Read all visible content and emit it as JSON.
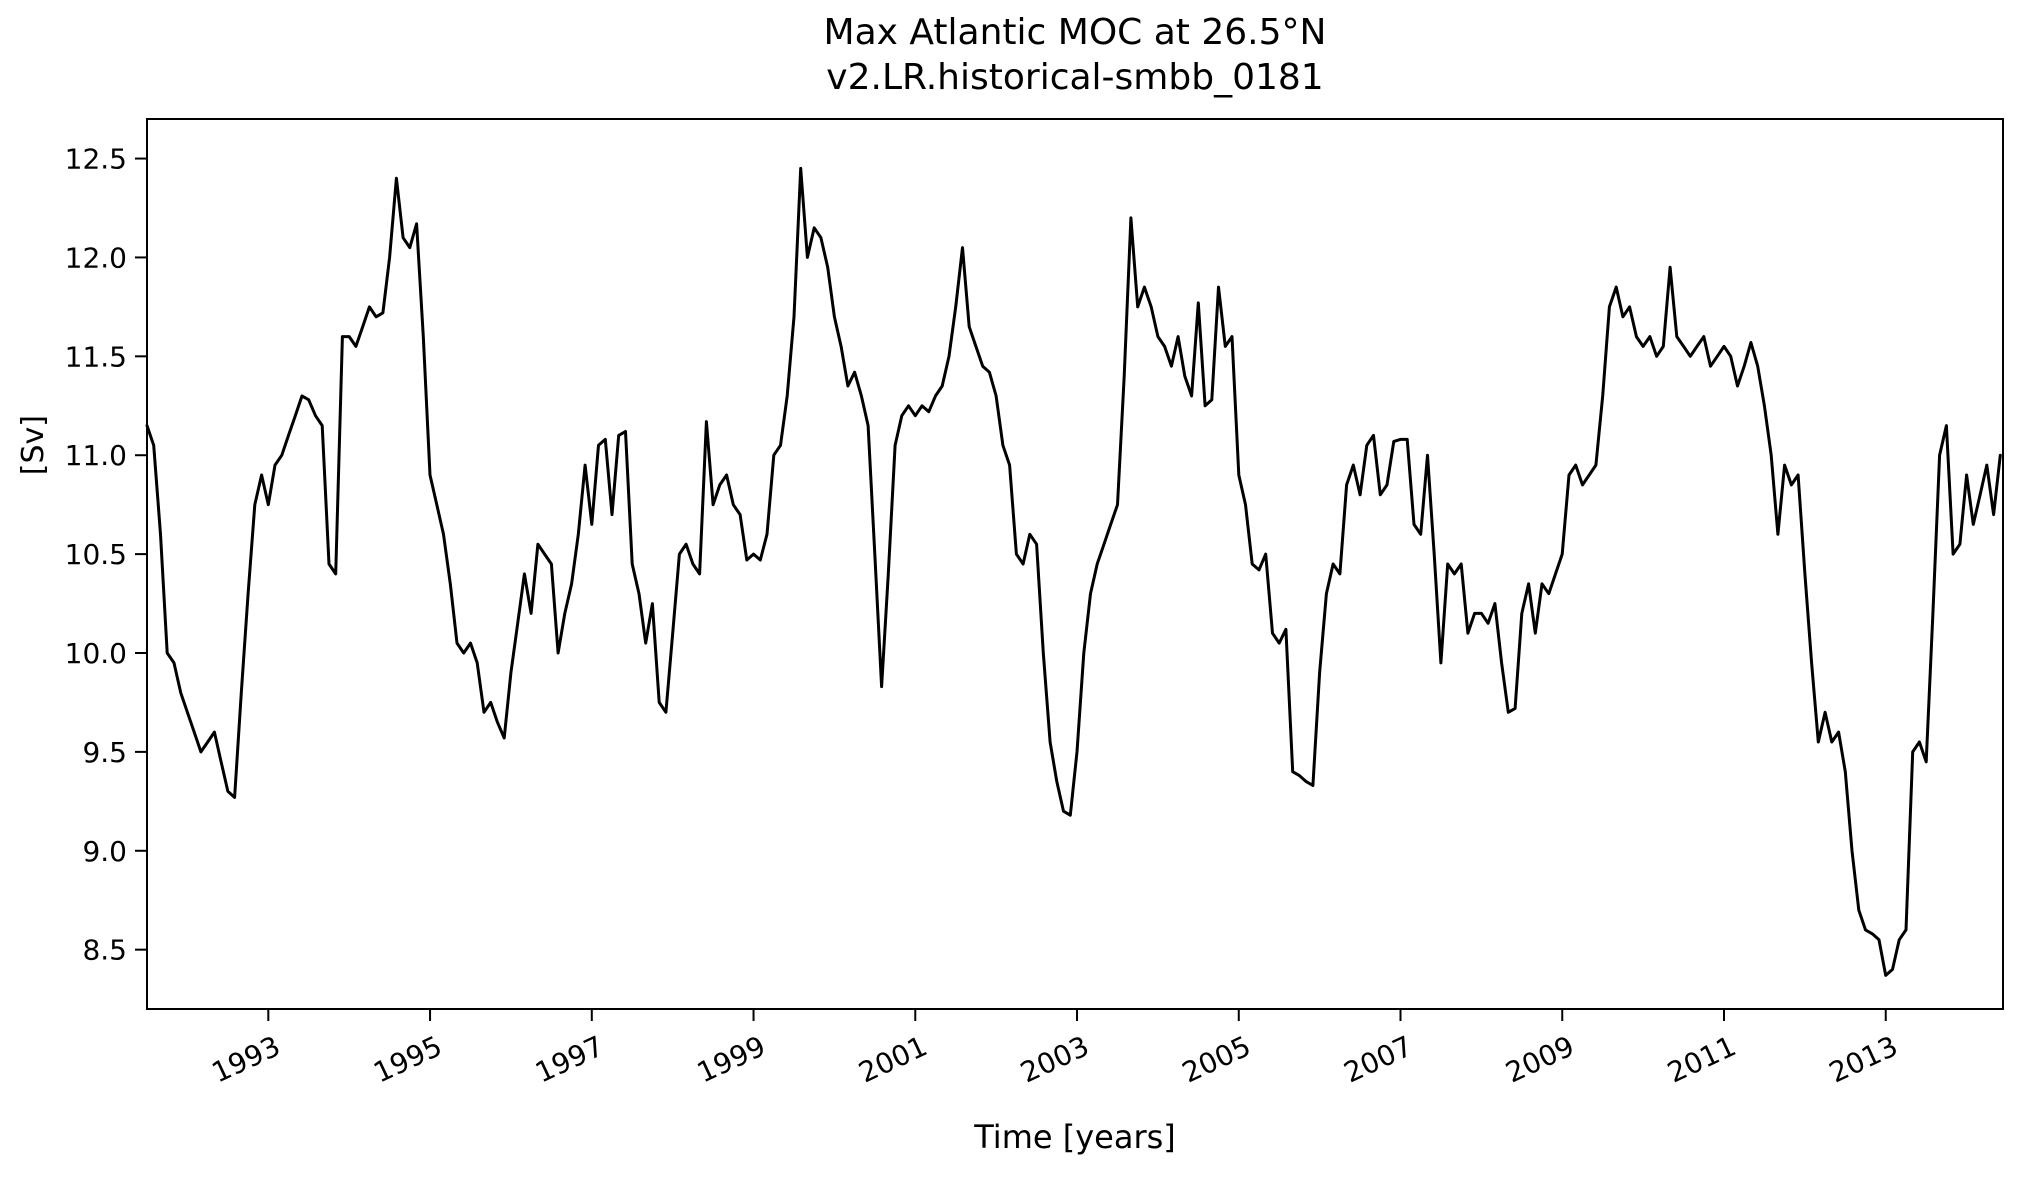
{
  "figure": {
    "title": "Max Atlantic MOC at 26.5°N",
    "subtitle": "v2.LR.historical-smbb_0181",
    "xlabel": "Time [years]",
    "ylabel": "[Sv]"
  },
  "chart_data": {
    "type": "line",
    "title": "Max Atlantic MOC at 26.5°N",
    "subtitle": "v2.LR.historical-smbb_0181",
    "xlabel": "Time [years]",
    "ylabel": "[Sv]",
    "series_name": "Max Atlantic MOC at 26.5N",
    "line_color": "#000000",
    "line_width": 3,
    "grid": false,
    "legend": false,
    "xlim": [
      1991.5,
      2014.45
    ],
    "ylim": [
      8.2,
      12.7
    ],
    "xticks": [
      1993,
      1995,
      1997,
      1999,
      2001,
      2003,
      2005,
      2007,
      2009,
      2011,
      2013
    ],
    "yticks": [
      8.5,
      9.0,
      9.5,
      10.0,
      10.5,
      11.0,
      11.5,
      12.0,
      12.5
    ],
    "x_unit": "decimal_year_monthly",
    "x_start": 1991.5,
    "x_step": 0.0833333,
    "values": [
      11.15,
      11.05,
      10.6,
      10.0,
      9.95,
      9.8,
      9.7,
      9.6,
      9.5,
      9.55,
      9.6,
      9.45,
      9.3,
      9.27,
      9.8,
      10.3,
      10.75,
      10.9,
      10.75,
      10.95,
      11.0,
      11.1,
      11.2,
      11.3,
      11.28,
      11.2,
      11.15,
      10.45,
      10.4,
      11.6,
      11.6,
      11.55,
      11.65,
      11.75,
      11.7,
      11.72,
      12.0,
      12.4,
      12.1,
      12.05,
      12.17,
      11.6,
      10.9,
      10.75,
      10.6,
      10.35,
      10.05,
      10.0,
      10.05,
      9.95,
      9.7,
      9.75,
      9.65,
      9.57,
      9.9,
      10.15,
      10.4,
      10.2,
      10.55,
      10.5,
      10.45,
      10.0,
      10.2,
      10.35,
      10.6,
      10.95,
      10.65,
      11.05,
      11.08,
      10.7,
      11.1,
      11.12,
      10.45,
      10.3,
      10.05,
      10.25,
      9.75,
      9.7,
      10.1,
      10.5,
      10.55,
      10.45,
      10.4,
      11.17,
      10.75,
      10.85,
      10.9,
      10.75,
      10.7,
      10.47,
      10.5,
      10.47,
      10.6,
      11.0,
      11.05,
      11.3,
      11.7,
      12.45,
      12.0,
      12.15,
      12.1,
      11.95,
      11.7,
      11.55,
      11.35,
      11.42,
      11.3,
      11.15,
      10.5,
      9.83,
      10.4,
      11.05,
      11.2,
      11.25,
      11.2,
      11.25,
      11.22,
      11.3,
      11.35,
      11.5,
      11.75,
      12.05,
      11.65,
      11.55,
      11.45,
      11.42,
      11.3,
      11.05,
      10.95,
      10.5,
      10.45,
      10.6,
      10.55,
      10.0,
      9.55,
      9.35,
      9.2,
      9.18,
      9.5,
      10.0,
      10.3,
      10.45,
      10.55,
      10.65,
      10.75,
      11.4,
      12.2,
      11.75,
      11.85,
      11.75,
      11.6,
      11.55,
      11.45,
      11.6,
      11.4,
      11.3,
      11.77,
      11.25,
      11.28,
      11.85,
      11.55,
      11.6,
      10.9,
      10.75,
      10.45,
      10.42,
      10.5,
      10.1,
      10.05,
      10.12,
      9.4,
      9.38,
      9.35,
      9.33,
      9.9,
      10.3,
      10.45,
      10.4,
      10.85,
      10.95,
      10.8,
      11.05,
      11.1,
      10.8,
      10.85,
      11.07,
      11.08,
      11.08,
      10.65,
      10.6,
      11.0,
      10.5,
      9.95,
      10.45,
      10.4,
      10.45,
      10.1,
      10.2,
      10.2,
      10.15,
      10.25,
      9.95,
      9.7,
      9.72,
      10.2,
      10.35,
      10.1,
      10.35,
      10.3,
      10.4,
      10.5,
      10.9,
      10.95,
      10.85,
      10.9,
      10.95,
      11.3,
      11.75,
      11.85,
      11.7,
      11.75,
      11.6,
      11.55,
      11.6,
      11.5,
      11.55,
      11.95,
      11.6,
      11.55,
      11.5,
      11.55,
      11.6,
      11.45,
      11.5,
      11.55,
      11.5,
      11.35,
      11.45,
      11.57,
      11.45,
      11.25,
      11.0,
      10.6,
      10.95,
      10.85,
      10.9,
      10.4,
      9.95,
      9.55,
      9.7,
      9.55,
      9.6,
      9.4,
      9.0,
      8.7,
      8.6,
      8.58,
      8.55,
      8.37,
      8.4,
      8.55,
      8.6,
      9.5,
      9.55,
      9.45,
      10.2,
      11.0,
      11.15,
      10.5,
      10.55,
      10.9,
      10.65,
      10.8,
      10.95,
      10.7,
      11.0
    ]
  }
}
